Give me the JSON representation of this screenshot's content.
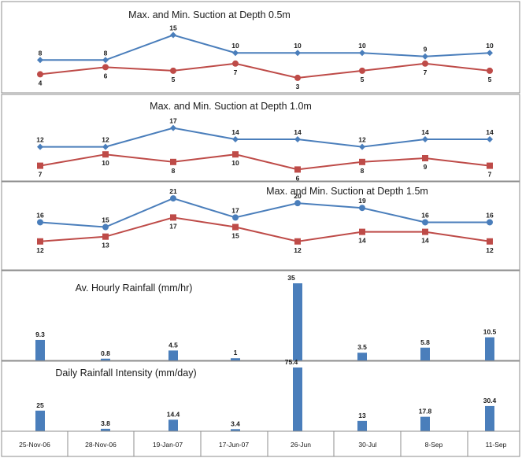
{
  "x_categories": [
    "25-Nov-06",
    "28-Nov-06",
    "19-Jan-07",
    "17-Jun-07",
    "26-Jun",
    "30-Jul",
    "8-Sep",
    "11-Sep"
  ],
  "colors": {
    "max_series": "#4a7ebb",
    "min_series": "#be4b48",
    "bar": "#4a7ebb",
    "frame": "#8c8c8c",
    "text": "#1a1a1a"
  },
  "chart_data": [
    {
      "type": "line",
      "title": "Max. and Min. Suction at Depth 0.5m",
      "categories": [
        "25-Nov-06",
        "28-Nov-06",
        "19-Jan-07",
        "17-Jun-07",
        "26-Jun",
        "30-Jul",
        "8-Sep",
        "11-Sep"
      ],
      "series": [
        {
          "values": [
            8,
            8,
            15,
            10,
            10,
            10,
            9,
            10
          ],
          "labels": [
            "8",
            "8",
            "15",
            "10",
            "10",
            "10",
            "9",
            "10"
          ],
          "marker": "diamond",
          "color": "#4a7ebb"
        },
        {
          "values": [
            4,
            6,
            5,
            7,
            3,
            5,
            7,
            5
          ],
          "labels": [
            "4",
            "6",
            "5",
            "7",
            "3",
            "5",
            "7",
            "5"
          ],
          "marker": "circle",
          "color": "#be4b48"
        }
      ],
      "ylim": [
        1,
        16
      ]
    },
    {
      "type": "line",
      "title": "Max. and Min. Suction at Depth 1.0m",
      "categories": [
        "25-Nov-06",
        "28-Nov-06",
        "19-Jan-07",
        "17-Jun-07",
        "26-Jun",
        "30-Jul",
        "8-Sep",
        "11-Sep"
      ],
      "series": [
        {
          "values": [
            12,
            12,
            17,
            14,
            14,
            12,
            14,
            14
          ],
          "labels": [
            "12",
            "12",
            "17",
            "14",
            "14",
            "12",
            "14",
            "14"
          ],
          "marker": "diamond",
          "color": "#4a7ebb"
        },
        {
          "values": [
            7,
            10,
            8,
            10,
            6,
            8,
            9,
            7
          ],
          "labels": [
            "7",
            "10",
            "8",
            "10",
            "6",
            "8",
            "9",
            "7"
          ],
          "marker": "square",
          "color": "#be4b48"
        }
      ],
      "ylim": [
        4,
        19
      ]
    },
    {
      "type": "line",
      "title": "Max. and Min. Suction at Depth 1.5m",
      "categories": [
        "25-Nov-06",
        "28-Nov-06",
        "19-Jan-07",
        "17-Jun-07",
        "26-Jun",
        "30-Jul",
        "8-Sep",
        "11-Sep"
      ],
      "series": [
        {
          "values": [
            16,
            15,
            21,
            17,
            20,
            19,
            16,
            16
          ],
          "labels": [
            "16",
            "15",
            "21",
            "17",
            "20",
            "19",
            "16",
            "16"
          ],
          "marker": "circle",
          "color": "#4a7ebb"
        },
        {
          "values": [
            12,
            13,
            17,
            15,
            12,
            14,
            14,
            12
          ],
          "labels": [
            "12",
            "13",
            "17",
            "15",
            "12",
            "14",
            "14",
            "12"
          ],
          "marker": "square",
          "color": "#be4b48"
        }
      ],
      "ylim": [
        9,
        22
      ]
    },
    {
      "type": "bar",
      "title": "Av. Hourly Rainfall (mm/hr)",
      "categories": [
        "25-Nov-06",
        "28-Nov-06",
        "19-Jan-07",
        "17-Jun-07",
        "26-Jun",
        "30-Jul",
        "8-Sep",
        "11-Sep"
      ],
      "values": [
        9.3,
        0.8,
        4.5,
        1,
        35,
        3.5,
        5.8,
        10.5
      ],
      "labels": [
        "9.3",
        "0.8",
        "4.5",
        "1",
        "35",
        "3.5",
        "5.8",
        "10.5"
      ],
      "ylim": [
        0,
        35
      ]
    },
    {
      "type": "bar",
      "title": "Daily Rainfall Intensity (mm/day)",
      "categories": [
        "25-Nov-06",
        "28-Nov-06",
        "19-Jan-07",
        "17-Jun-07",
        "26-Jun",
        "30-Jul",
        "8-Sep",
        "11-Sep"
      ],
      "values": [
        25,
        3.8,
        14.4,
        3.4,
        75.4,
        13,
        17.8,
        30.4
      ],
      "labels": [
        "25",
        "3.8",
        "14.4",
        "3.4",
        "75.4",
        "13",
        "17.8",
        "30.4"
      ],
      "ylim": [
        0,
        75.4
      ]
    }
  ]
}
